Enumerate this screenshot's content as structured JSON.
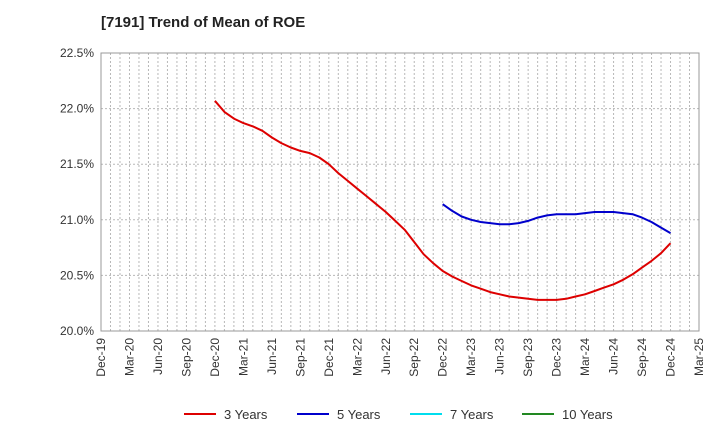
{
  "chart_data": {
    "type": "line",
    "title": "[7191]  Trend of Mean of ROE",
    "xlabel": "",
    "ylabel": "",
    "y_unit": "%",
    "ylim": [
      20.0,
      22.5
    ],
    "y_ticks": [
      "20.0%",
      "20.5%",
      "21.0%",
      "21.5%",
      "22.0%",
      "22.5%"
    ],
    "x_ticks": [
      "Dec-19",
      "Mar-20",
      "Jun-20",
      "Sep-20",
      "Dec-20",
      "Mar-21",
      "Jun-21",
      "Sep-21",
      "Dec-21",
      "Mar-22",
      "Jun-22",
      "Sep-22",
      "Dec-22",
      "Mar-23",
      "Jun-23",
      "Sep-23",
      "Dec-23",
      "Mar-24",
      "Jun-24",
      "Sep-24",
      "Dec-24",
      "Mar-25"
    ],
    "grid": true,
    "legend_position": "bottom",
    "series": [
      {
        "name": "3 Years",
        "color": "#dd0000",
        "points": [
          [
            "Dec-20",
            22.07
          ],
          [
            "Jan-21",
            21.97
          ],
          [
            "Feb-21",
            21.91
          ],
          [
            "Mar-21",
            21.87
          ],
          [
            "Apr-21",
            21.84
          ],
          [
            "May-21",
            21.8
          ],
          [
            "Jun-21",
            21.74
          ],
          [
            "Jul-21",
            21.69
          ],
          [
            "Aug-21",
            21.65
          ],
          [
            "Sep-21",
            21.62
          ],
          [
            "Oct-21",
            21.6
          ],
          [
            "Nov-21",
            21.56
          ],
          [
            "Dec-21",
            21.5
          ],
          [
            "Jan-22",
            21.42
          ],
          [
            "Feb-22",
            21.35
          ],
          [
            "Mar-22",
            21.28
          ],
          [
            "Apr-22",
            21.21
          ],
          [
            "May-22",
            21.14
          ],
          [
            "Jun-22",
            21.07
          ],
          [
            "Jul-22",
            20.99
          ],
          [
            "Aug-22",
            20.91
          ],
          [
            "Sep-22",
            20.8
          ],
          [
            "Oct-22",
            20.69
          ],
          [
            "Nov-22",
            20.61
          ],
          [
            "Dec-22",
            20.54
          ],
          [
            "Jan-23",
            20.49
          ],
          [
            "Feb-23",
            20.45
          ],
          [
            "Mar-23",
            20.41
          ],
          [
            "Apr-23",
            20.38
          ],
          [
            "May-23",
            20.35
          ],
          [
            "Jun-23",
            20.33
          ],
          [
            "Jul-23",
            20.31
          ],
          [
            "Aug-23",
            20.3
          ],
          [
            "Sep-23",
            20.29
          ],
          [
            "Oct-23",
            20.28
          ],
          [
            "Nov-23",
            20.28
          ],
          [
            "Dec-23",
            20.28
          ],
          [
            "Jan-24",
            20.29
          ],
          [
            "Feb-24",
            20.31
          ],
          [
            "Mar-24",
            20.33
          ],
          [
            "Apr-24",
            20.36
          ],
          [
            "May-24",
            20.39
          ],
          [
            "Jun-24",
            20.42
          ],
          [
            "Jul-24",
            20.46
          ],
          [
            "Aug-24",
            20.51
          ],
          [
            "Sep-24",
            20.57
          ],
          [
            "Oct-24",
            20.63
          ],
          [
            "Nov-24",
            20.7
          ],
          [
            "Dec-24",
            20.79
          ]
        ]
      },
      {
        "name": "5 Years",
        "color": "#0000cc",
        "points": [
          [
            "Dec-22",
            21.14
          ],
          [
            "Jan-23",
            21.08
          ],
          [
            "Feb-23",
            21.03
          ],
          [
            "Mar-23",
            21.0
          ],
          [
            "Apr-23",
            20.98
          ],
          [
            "May-23",
            20.97
          ],
          [
            "Jun-23",
            20.96
          ],
          [
            "Jul-23",
            20.96
          ],
          [
            "Aug-23",
            20.97
          ],
          [
            "Sep-23",
            20.99
          ],
          [
            "Oct-23",
            21.02
          ],
          [
            "Nov-23",
            21.04
          ],
          [
            "Dec-23",
            21.05
          ],
          [
            "Jan-24",
            21.05
          ],
          [
            "Feb-24",
            21.05
          ],
          [
            "Mar-24",
            21.06
          ],
          [
            "Apr-24",
            21.07
          ],
          [
            "May-24",
            21.07
          ],
          [
            "Jun-24",
            21.07
          ],
          [
            "Jul-24",
            21.06
          ],
          [
            "Aug-24",
            21.05
          ],
          [
            "Sep-24",
            21.02
          ],
          [
            "Oct-24",
            20.98
          ],
          [
            "Nov-24",
            20.93
          ],
          [
            "Dec-24",
            20.88
          ]
        ]
      },
      {
        "name": "7 Years",
        "color": "#00ddee",
        "points": []
      },
      {
        "name": "10 Years",
        "color": "#228822",
        "points": []
      }
    ]
  }
}
